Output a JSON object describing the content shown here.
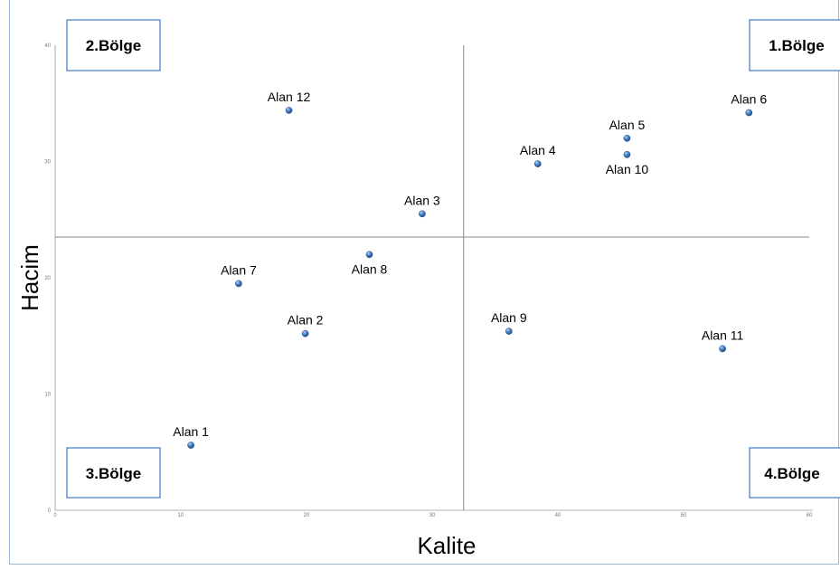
{
  "chart_data": {
    "type": "scatter",
    "xlabel": "Kalite",
    "ylabel": "Hacim",
    "xlim": [
      0,
      60
    ],
    "ylim": [
      0,
      40
    ],
    "x_ticks": [
      0,
      10,
      20,
      30,
      40,
      50,
      60
    ],
    "y_ticks": [
      0,
      10,
      20,
      30,
      40
    ],
    "grid": false,
    "divider_lines": {
      "x": 32.5,
      "y": 23.5
    },
    "quadrants": [
      {
        "label": "1.Bölge",
        "position": "top-right"
      },
      {
        "label": "2.Bölge",
        "position": "top-left"
      },
      {
        "label": "3.Bölge",
        "position": "bottom-left"
      },
      {
        "label": "4.Bölge",
        "position": "bottom-right"
      }
    ],
    "points": [
      {
        "label": "Alan 1",
        "x": 10.8,
        "y": 5.6,
        "label_pos": "above"
      },
      {
        "label": "Alan 2",
        "x": 19.9,
        "y": 15.2,
        "label_pos": "above"
      },
      {
        "label": "Alan 3",
        "x": 29.2,
        "y": 25.5,
        "label_pos": "above"
      },
      {
        "label": "Alan 4",
        "x": 38.4,
        "y": 29.8,
        "label_pos": "above"
      },
      {
        "label": "Alan 5",
        "x": 45.5,
        "y": 32.0,
        "label_pos": "above"
      },
      {
        "label": "Alan 6",
        "x": 55.2,
        "y": 34.2,
        "label_pos": "above"
      },
      {
        "label": "Alan 7",
        "x": 14.6,
        "y": 19.5,
        "label_pos": "above"
      },
      {
        "label": "Alan 8",
        "x": 25.0,
        "y": 22.0,
        "label_pos": "below"
      },
      {
        "label": "Alan 9",
        "x": 36.1,
        "y": 15.4,
        "label_pos": "above"
      },
      {
        "label": "Alan 10",
        "x": 45.5,
        "y": 30.6,
        "label_pos": "below"
      },
      {
        "label": "Alan 11",
        "x": 53.1,
        "y": 13.9,
        "label_pos": "above"
      },
      {
        "label": "Alan 12",
        "x": 18.6,
        "y": 34.4,
        "label_pos": "above"
      }
    ],
    "colors": {
      "point": "#2f68ad",
      "point_highlight": "#9cc3ea",
      "axis": "#9a9a9a",
      "divider": "#888888",
      "quadrant_border": "#4a86c5"
    }
  }
}
